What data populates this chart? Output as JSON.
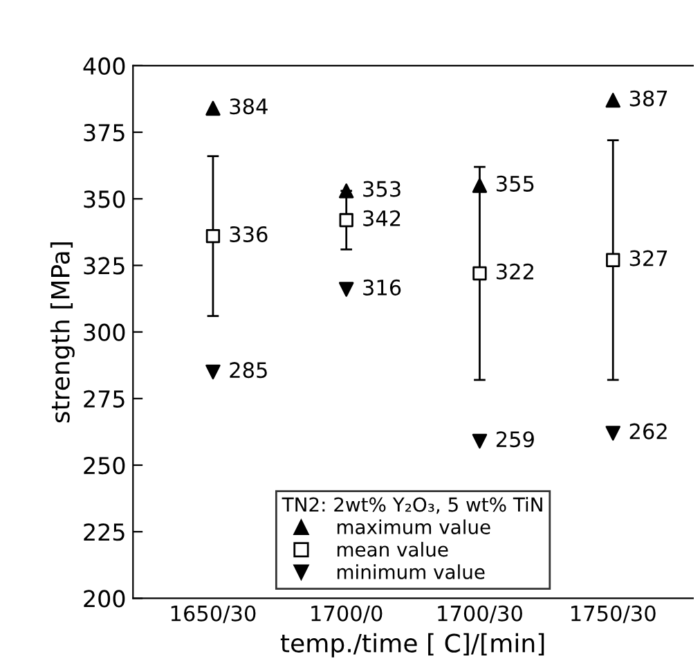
{
  "chart_data": {
    "type": "scatter",
    "ylabel": "strength [MPa]",
    "xlabel": "temp./time [ C]/[min]",
    "categories": [
      "1650/30",
      "1700/0",
      "1700/30",
      "1750/30"
    ],
    "ylim": [
      200,
      400
    ],
    "yticks": [
      200,
      225,
      250,
      275,
      300,
      325,
      350,
      375,
      400
    ],
    "legend_title": "TN2: 2wt% Y₂O₃, 5 wt% TiN",
    "legend": "bottom",
    "grid": false,
    "data_labels": true,
    "series": [
      {
        "name": "maximum value",
        "color": "#000000",
        "marker": "triangle",
        "values": [
          384,
          353,
          355,
          387
        ]
      },
      {
        "name": "mean value",
        "color": "#000000",
        "marker": "square",
        "values": [
          336,
          342,
          322,
          327
        ],
        "errors": [
          30,
          11,
          40,
          45
        ]
      },
      {
        "name": "minimum value",
        "color": "#000000",
        "marker": "triangle-down",
        "values": [
          285,
          316,
          259,
          262
        ]
      }
    ]
  }
}
